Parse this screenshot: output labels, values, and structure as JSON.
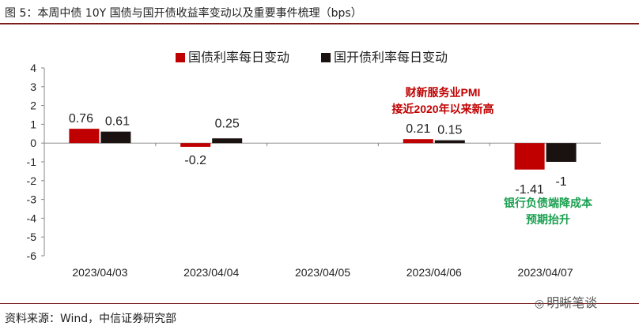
{
  "title": "图 5：本周中债 10Y 国债与国开债收益率变动以及重要事件梳理（bps）",
  "source": "资料来源：Wind，中信证券研究部",
  "watermark": "明晰笔谈",
  "colors": {
    "series1": "#c00000",
    "series2": "#1a1210",
    "annotation_red": "#c00000",
    "annotation_green": "#1aa050",
    "rule": "#7a1e1e"
  },
  "chart_data": {
    "type": "bar",
    "categories": [
      "2023/04/03",
      "2023/04/04",
      "2023/04/05",
      "2023/04/06",
      "2023/04/07"
    ],
    "series": [
      {
        "name": "国债利率每日变动",
        "values": [
          0.76,
          -0.2,
          null,
          0.21,
          -1.41
        ]
      },
      {
        "name": "国开债利率每日变动",
        "values": [
          0.61,
          0.25,
          null,
          0.15,
          -1
        ]
      }
    ],
    "data_labels": [
      [
        "0.76",
        "-0.2",
        "",
        "0.21",
        "-1.41"
      ],
      [
        "0.61",
        "0.25",
        "",
        "0.15",
        "-1"
      ]
    ],
    "ylim": [
      -6,
      4
    ],
    "yticks": [
      "4",
      "3",
      "2",
      "1",
      "0",
      "-1",
      "-2",
      "-3",
      "-4",
      "-5",
      "-6"
    ],
    "legend_position": "top",
    "annotations": [
      {
        "lines": [
          "财新服务业PMI",
          "接近2020年以来新高"
        ],
        "category": "2023/04/06",
        "color": "red"
      },
      {
        "lines": [
          "银行负债端降成本",
          "预期抬升"
        ],
        "category": "2023/04/07",
        "color": "green"
      }
    ]
  }
}
